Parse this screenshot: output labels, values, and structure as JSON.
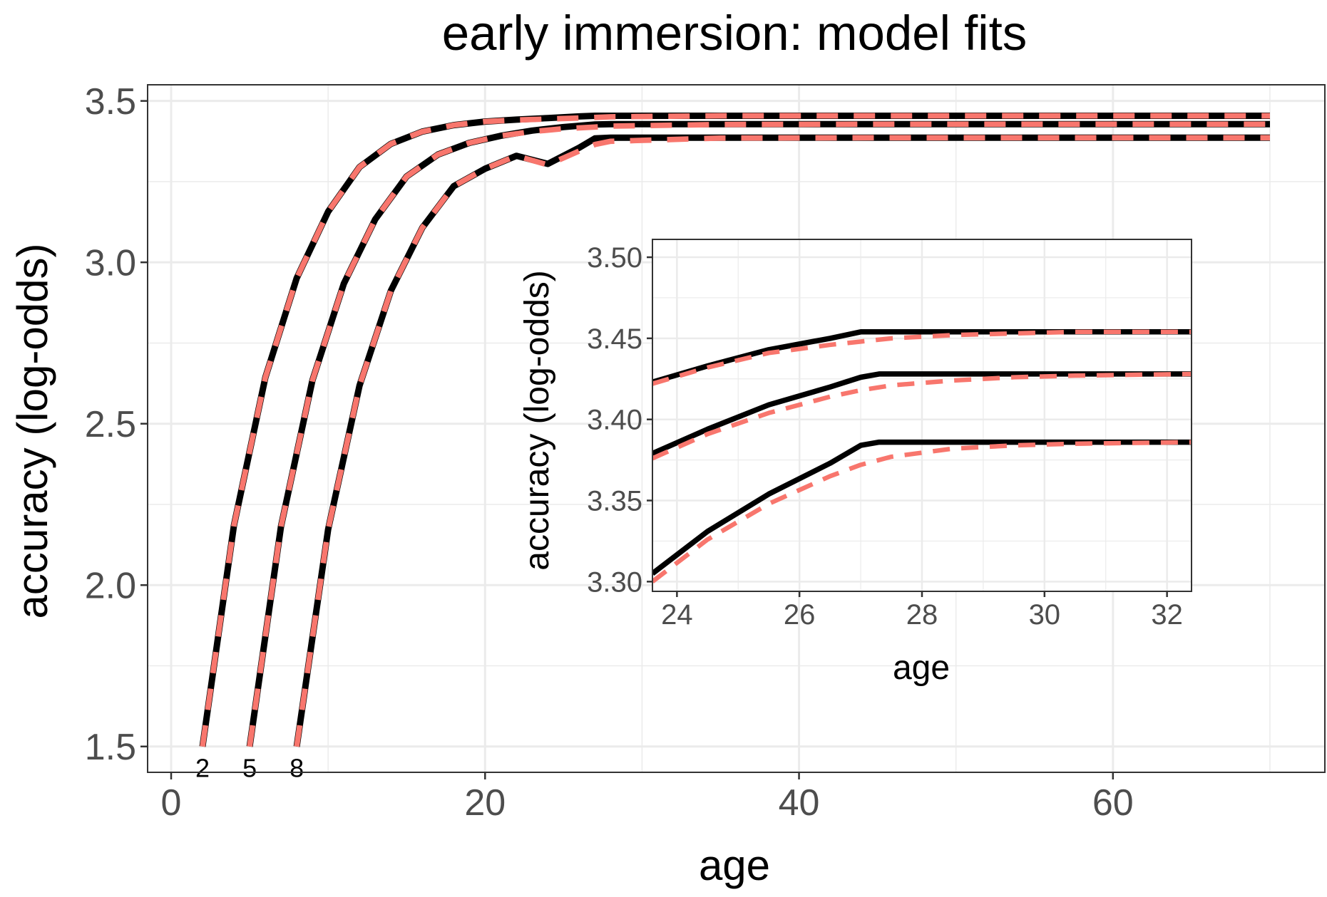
{
  "chart_data": [
    {
      "type": "line",
      "title": "early immersion: model fits",
      "xlabel": "age",
      "ylabel": "accuracy (log-odds)",
      "xlim": [
        -1.5,
        73.5
      ],
      "ylim": [
        1.42,
        3.55
      ],
      "x_ticks": [
        0,
        20,
        40,
        60
      ],
      "x_tick_labels": [
        "0",
        "20",
        "40",
        "60"
      ],
      "y_ticks": [
        1.5,
        2.0,
        2.5,
        3.0,
        3.5
      ],
      "y_tick_labels": [
        "1.5",
        "2.0",
        "2.5",
        "3.0",
        "3.5"
      ],
      "grid": true,
      "colors": {
        "solid": "#000000",
        "dashed": "#f8766d",
        "grid": "#ebebeb",
        "panel_border": "#333333"
      },
      "line_labels": [
        {
          "text": "2",
          "x": 2,
          "y": 1.45
        },
        {
          "text": "5",
          "x": 5,
          "y": 1.45
        },
        {
          "text": "8",
          "x": 8,
          "y": 1.45
        }
      ],
      "series": [
        {
          "style": "solid",
          "color": "#000000",
          "x": [
            2,
            4,
            6,
            8,
            10,
            12,
            14,
            16,
            18,
            20,
            22,
            24,
            26,
            27,
            28,
            35,
            45,
            55,
            70
          ],
          "y": [
            1.5,
            2.185,
            2.643,
            2.951,
            3.157,
            3.295,
            3.367,
            3.405,
            3.425,
            3.436,
            3.442,
            3.447,
            3.452,
            3.454,
            3.454,
            3.454,
            3.454,
            3.454,
            3.454
          ]
        },
        {
          "style": "dashed",
          "color": "#f8766d",
          "x": [
            2,
            4,
            6,
            8,
            10,
            12,
            14,
            16,
            18,
            20,
            22,
            24,
            26,
            27,
            28,
            35,
            45,
            55,
            70
          ],
          "y": [
            1.5,
            2.185,
            2.643,
            2.951,
            3.157,
            3.295,
            3.367,
            3.405,
            3.425,
            3.436,
            3.441,
            3.444,
            3.447,
            3.449,
            3.451,
            3.454,
            3.454,
            3.454,
            3.454
          ]
        },
        {
          "style": "solid",
          "color": "#000000",
          "x": [
            5,
            7,
            9,
            11,
            13,
            15,
            17,
            19,
            21,
            23,
            25,
            27,
            28,
            35,
            45,
            55,
            70
          ],
          "y": [
            1.5,
            2.182,
            2.634,
            2.934,
            3.133,
            3.266,
            3.334,
            3.37,
            3.392,
            3.408,
            3.419,
            3.427,
            3.428,
            3.428,
            3.428,
            3.428,
            3.428
          ]
        },
        {
          "style": "dashed",
          "color": "#f8766d",
          "x": [
            5,
            7,
            9,
            11,
            13,
            15,
            17,
            19,
            21,
            23,
            25,
            27,
            28,
            35,
            45,
            55,
            70
          ],
          "y": [
            1.5,
            2.182,
            2.634,
            2.934,
            3.133,
            3.266,
            3.334,
            3.37,
            3.392,
            3.405,
            3.414,
            3.419,
            3.422,
            3.427,
            3.428,
            3.428,
            3.428
          ]
        },
        {
          "style": "solid",
          "color": "#000000",
          "x": [
            8,
            10,
            12,
            14,
            16,
            18,
            20,
            22,
            24,
            26,
            27,
            28,
            35,
            45,
            55,
            70
          ],
          "y": [
            1.5,
            2.173,
            2.618,
            2.912,
            3.107,
            3.236,
            3.29,
            3.33,
            3.305,
            3.355,
            3.384,
            3.386,
            3.386,
            3.386,
            3.386,
            3.386
          ]
        },
        {
          "style": "dashed",
          "color": "#f8766d",
          "x": [
            8,
            10,
            12,
            14,
            16,
            18,
            20,
            22,
            24,
            26,
            27,
            28,
            35,
            45,
            55,
            70
          ],
          "y": [
            1.5,
            2.173,
            2.618,
            2.912,
            3.107,
            3.236,
            3.29,
            3.33,
            3.302,
            3.345,
            3.365,
            3.375,
            3.385,
            3.386,
            3.386,
            3.386
          ]
        }
      ]
    },
    {
      "type": "line",
      "title": "",
      "xlabel": "age",
      "ylabel": "accuracy (log-odds)",
      "xlim": [
        23.6,
        32.4
      ],
      "ylim": [
        3.294,
        3.511
      ],
      "x_ticks": [
        24,
        26,
        28,
        30,
        32
      ],
      "x_tick_labels": [
        "24",
        "26",
        "28",
        "30",
        "32"
      ],
      "y_ticks": [
        3.3,
        3.35,
        3.4,
        3.45,
        3.5
      ],
      "y_tick_labels": [
        "3.30",
        "3.35",
        "3.40",
        "3.45",
        "3.50"
      ],
      "grid": true,
      "series": [
        {
          "style": "solid",
          "color": "#000000",
          "x": [
            23.6,
            24.5,
            25.5,
            26.5,
            27.0,
            27.3,
            28,
            30,
            32.4
          ],
          "y": [
            3.423,
            3.433,
            3.443,
            3.45,
            3.454,
            3.454,
            3.454,
            3.454,
            3.454
          ]
        },
        {
          "style": "dashed",
          "color": "#f8766d",
          "x": [
            23.6,
            24.5,
            25.5,
            26.5,
            27.0,
            27.5,
            28.5,
            29.5,
            30.5,
            32.4
          ],
          "y": [
            3.422,
            3.432,
            3.441,
            3.446,
            3.448,
            3.45,
            3.452,
            3.453,
            3.454,
            3.454
          ]
        },
        {
          "style": "solid",
          "color": "#000000",
          "x": [
            23.6,
            24.5,
            25.5,
            26.5,
            27.0,
            27.3,
            28,
            30,
            32.4
          ],
          "y": [
            3.379,
            3.394,
            3.409,
            3.42,
            3.426,
            3.428,
            3.428,
            3.428,
            3.428
          ]
        },
        {
          "style": "dashed",
          "color": "#f8766d",
          "x": [
            23.6,
            24.5,
            25.5,
            26.5,
            27.0,
            27.5,
            28.5,
            29.5,
            30.5,
            32.4
          ],
          "y": [
            3.376,
            3.391,
            3.404,
            3.414,
            3.418,
            3.421,
            3.424,
            3.426,
            3.427,
            3.428
          ]
        },
        {
          "style": "solid",
          "color": "#000000",
          "x": [
            23.6,
            24.5,
            25.5,
            26.5,
            27.0,
            27.3,
            28,
            30,
            32.4
          ],
          "y": [
            3.305,
            3.331,
            3.354,
            3.373,
            3.384,
            3.386,
            3.386,
            3.386,
            3.386
          ]
        },
        {
          "style": "dashed",
          "color": "#f8766d",
          "x": [
            23.6,
            24.5,
            25.5,
            26.5,
            27.0,
            27.5,
            28.5,
            29.5,
            30.5,
            32.4
          ],
          "y": [
            3.3,
            3.326,
            3.348,
            3.365,
            3.372,
            3.377,
            3.382,
            3.384,
            3.385,
            3.386
          ]
        }
      ]
    }
  ]
}
